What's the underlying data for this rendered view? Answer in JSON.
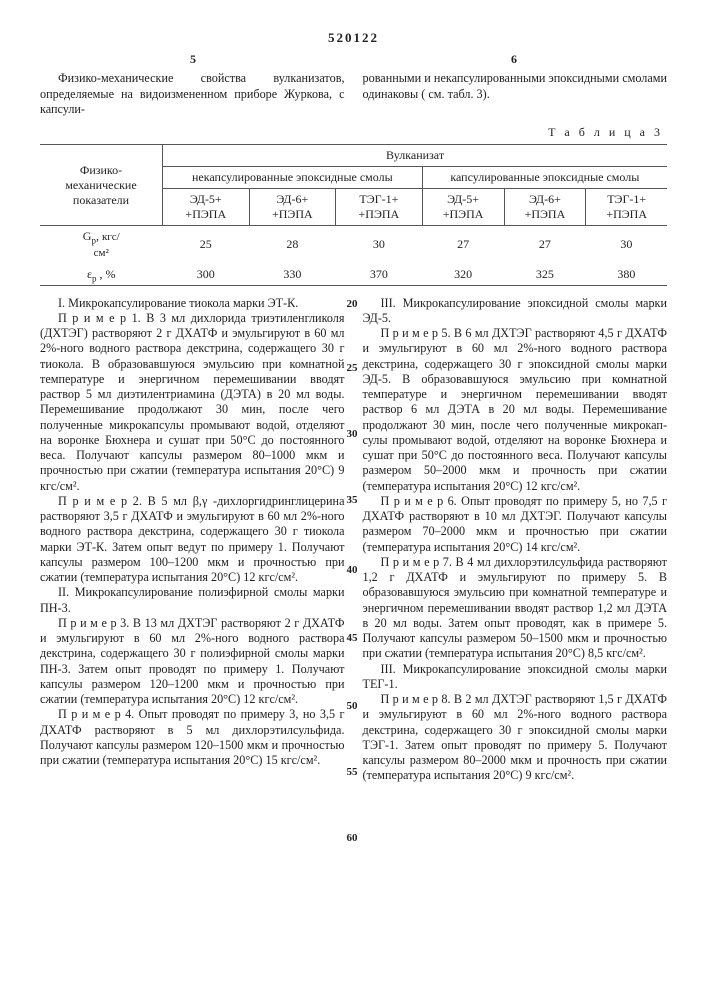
{
  "doc_number": "520122",
  "page_left_num": "5",
  "page_right_num": "6",
  "intro_left": "Физико-механические свойства вул­канизатов, определяемые на видоизме­ненном приборе Журкова, с капсули-",
  "intro_right": "рованными и некапсулированными эпок­сидными смолами одинаковы ( см. табл. 3).",
  "table_caption": "Т а б л и ц а  3",
  "table": {
    "rowhead": "Физико-\nмеханические\nпоказатели",
    "group_title": "Вулканизат",
    "grp1": "некапсулированные эпоксидные смолы",
    "grp2": "капсулированные эпоксидные смолы",
    "cols": [
      "ЭД-5+\n+ПЭПА",
      "ЭД-6+\n+ПЭПА",
      "ТЭГ-1+\n+ПЭПА",
      "ЭД-5+\n+ПЭПА",
      "ЭД-6+\n+ПЭПА",
      "ТЭГ-1+\n+ПЭПА"
    ],
    "rows": [
      {
        "label_html": "G<sub>р</sub>, <span class='small'>кгс/<br>см²</span>",
        "vals": [
          "25",
          "28",
          "30",
          "27",
          "27",
          "30"
        ]
      },
      {
        "label_html": "ε<sub>р</sub> , %",
        "vals": [
          "300",
          "330",
          "370",
          "320",
          "325",
          "380"
        ]
      }
    ]
  },
  "left_col": {
    "sec1_title": "I. Микрокапсулирование тиокола мар­ки ЭТ-К.",
    "p1": "П р и м е р 1. В 3 мл дихлорида триэ­тиленгликоля (ДХТЭГ) растворяют 2 г ДХАТФ и эмульгируют в 60 мл 2%-ного водного раствора декстрина, содержащего 30 г тиокола. В образовавшуюся эмульсию при комнатной температуре и энергичном перемешивании вводят раствор 5 мл диэти­лентриамина (ДЭТА) в 20 мл воды. Пере­мешивание продолжают 30 мин, после чего полученные микрокапсулы промывают водой, отделяют на воронке Бюхнера и сушат при 50°С до постоянного веса. Получают капсу­лы размером 80–1000 мкм и прочностью при сжатии (температура испытания 20°С) 9 кгс/см².",
    "p2": "П р и м е р  2. В 5 мл β,γ -дихлор­гидринглицерина растворяют 3,5 г ДХАТФ и эмульгируют в 60 мл 2%-ного водного раствора декстрина, содержащего 30 г ти­окола марки ЭТ-К. Затем опыт ведут по примеру 1. Получают капсулы размером 100–1200 мкм и прочностью при сжатии (температура испытания 20°С) 12 кгс/см².",
    "sec2_title": "II. Микрокапсулирование полиэфирной смо­лы марки ПН-3.",
    "p3": "П р и м е р  3. В 13 мл ДХТЭГ рас­творяют 2 г ДХАТФ и  эмульгируют в 60 мл 2%-ного водного раствора декстри­на, содержащего 30 г полиэфирной смолы марки ПН-3. Затем опыт проводят по при­меру 1. Получают капсулы размером 120–1200 мкм и прочностью при сжатии (тем­пература испытания 20°С) 12 кгс/см².",
    "p4": "П р и м е р   4. Опыт проводят по при­меру 3, но 3,5 г ДХАТФ растворяют  в 5 мл дихлорэтилсульфида. Получают капсу­лы размером 120–1500 мкм и прочностью при сжатии (температура испытания 20°С) 15 кгс/см²."
  },
  "right_col": {
    "sec3_title": "III. Микрокапсулирование эпоксидной смо­лы марки ЭД-5.",
    "p5": "П р и м е р  5. В 6 мл ДХТЭГ раст­воряют 4,5 г ДХАТФ и эмульгируют в 60 мл 2%-ного водного раствора декстри­на, содержащего 30 г эпоксидной смолы марки ЭД-5. В образовавшуюся эмульсию при комнатной температуре и энергичном перемешивании вводят раствор 6 мл ДЭТА в 20 мл воды. Перемешивание продолжают 30 мин, после чего полученные микрокап­сулы промывают водой, отделяют на ворон­ке Бюхнера и сушат при 50°С до постоян­ного веса. Получают капсулы размером 50–2000 мкм и прочность при сжатии (температура испытания 20°С) 12 кгс/см².",
    "p6": "П р и м е р   6. Опыт проводят по при­меру 5, но 7,5 г ДХАТФ растворяют в 10 мл ДХТЭГ. Получают капсулы размером 70–2000 мкм и прочностью при сжатии (температура испытания 20°С) 14 кгс/см².",
    "p7": "П р и м е р    7. В 4 мл дихлорэтилсуль­фида растворяют 1,2 г ДХАТФ и эмульги­руют по примеру 5. В образовавшуюся эмульсию при комнатной температуре и энергичном перемешивании вводят раствор 1,2 мл ДЭТА в 20 мл воды. Затем опыт проводят, как в примере 5. Получают кап­сулы размером 50–1500 мкм и прочностью при сжатии (температура испытания 20°С) 8,5 кгс/см².",
    "sec4_title": "III.   Микрокапсулирование эпоксидной смолы марки ТЕГ-1.",
    "p8": "П р и м е р   8. В 2 мл ДХТЭГ раст­воряют 1,5 г ДХАТФ и эмульгируют в 60 мл 2%-ного водного раствора декстрина, содержащего 30 г эпоксидной смолы мар­ки ТЭГ-1. Затем опыт проводят по примеру 5. Получают капсулы размером 80–2000 мкм и прочность при сжатии (темпера­тура испытания 20°С) 9 кгс/см²."
  },
  "line_numbers": [
    "20",
    "25",
    "30",
    "35",
    "40",
    "45",
    "50",
    "55",
    "60"
  ],
  "colors": {
    "text": "#222",
    "border": "#555",
    "bg": "#ffffff"
  }
}
